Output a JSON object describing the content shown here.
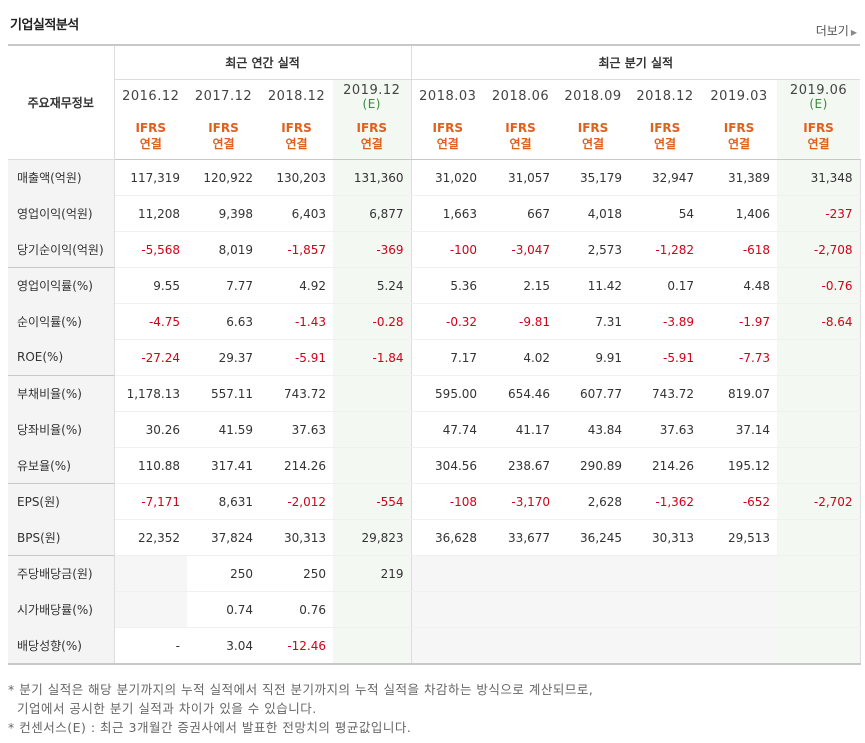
{
  "section_title": "기업실적분석",
  "more_label": "더보기",
  "more_arrow": "▶",
  "main_header": "주요재무정보",
  "groups": {
    "annual": "최근 연간 실적",
    "quarterly": "최근 분기 실적"
  },
  "periods": [
    {
      "label": "2016.12",
      "est": ""
    },
    {
      "label": "2017.12",
      "est": ""
    },
    {
      "label": "2018.12",
      "est": ""
    },
    {
      "label": "2019.12",
      "est": "(E)"
    },
    {
      "label": "2018.03",
      "est": ""
    },
    {
      "label": "2018.06",
      "est": ""
    },
    {
      "label": "2018.09",
      "est": ""
    },
    {
      "label": "2018.12",
      "est": ""
    },
    {
      "label": "2019.03",
      "est": ""
    },
    {
      "label": "2019.06",
      "est": "(E)"
    }
  ],
  "ifrs_line1": "IFRS",
  "ifrs_line2": "연결",
  "rows": [
    {
      "label": "매출액(억원)",
      "values": [
        "117,319",
        "120,922",
        "130,203",
        "131,360",
        "31,020",
        "31,057",
        "35,179",
        "32,947",
        "31,389",
        "31,348"
      ]
    },
    {
      "label": "영업이익(억원)",
      "values": [
        "11,208",
        "9,398",
        "6,403",
        "6,877",
        "1,663",
        "667",
        "4,018",
        "54",
        "1,406",
        "-237"
      ]
    },
    {
      "label": "당기순이익(억원)",
      "values": [
        "-5,568",
        "8,019",
        "-1,857",
        "-369",
        "-100",
        "-3,047",
        "2,573",
        "-1,282",
        "-618",
        "-2,708"
      ]
    },
    {
      "label": "영업이익률(%)",
      "values": [
        "9.55",
        "7.77",
        "4.92",
        "5.24",
        "5.36",
        "2.15",
        "11.42",
        "0.17",
        "4.48",
        "-0.76"
      ]
    },
    {
      "label": "순이익률(%)",
      "values": [
        "-4.75",
        "6.63",
        "-1.43",
        "-0.28",
        "-0.32",
        "-9.81",
        "7.31",
        "-3.89",
        "-1.97",
        "-8.64"
      ]
    },
    {
      "label": "ROE(%)",
      "values": [
        "-27.24",
        "29.37",
        "-5.91",
        "-1.84",
        "7.17",
        "4.02",
        "9.91",
        "-5.91",
        "-7.73",
        ""
      ]
    },
    {
      "label": "부채비율(%)",
      "values": [
        "1,178.13",
        "557.11",
        "743.72",
        "",
        "595.00",
        "654.46",
        "607.77",
        "743.72",
        "819.07",
        ""
      ]
    },
    {
      "label": "당좌비율(%)",
      "values": [
        "30.26",
        "41.59",
        "37.63",
        "",
        "47.74",
        "41.17",
        "43.84",
        "37.63",
        "37.14",
        ""
      ]
    },
    {
      "label": "유보율(%)",
      "values": [
        "110.88",
        "317.41",
        "214.26",
        "",
        "304.56",
        "238.67",
        "290.89",
        "214.26",
        "195.12",
        ""
      ]
    },
    {
      "label": "EPS(원)",
      "values": [
        "-7,171",
        "8,631",
        "-2,012",
        "-554",
        "-108",
        "-3,170",
        "2,628",
        "-1,362",
        "-652",
        "-2,702"
      ]
    },
    {
      "label": "BPS(원)",
      "values": [
        "22,352",
        "37,824",
        "30,313",
        "29,823",
        "36,628",
        "33,677",
        "36,245",
        "30,313",
        "29,513",
        ""
      ]
    },
    {
      "label": "주당배당금(원)",
      "values": [
        "",
        "250",
        "250",
        "219",
        "",
        "",
        "",
        "",
        "",
        ""
      ]
    },
    {
      "label": "시가배당률(%)",
      "values": [
        "",
        "0.74",
        "0.76",
        "",
        "",
        "",
        "",
        "",
        "",
        ""
      ]
    },
    {
      "label": "배당성향(%)",
      "values": [
        "-",
        "3.04",
        "-12.46",
        "",
        "",
        "",
        "",
        "",
        "",
        ""
      ]
    }
  ],
  "notes": [
    "* 분기 실적은 해당 분기까지의 누적 실적에서 직전 분기까지의 누적 실적을 차감하는 방식으로 계산되므로,",
    "  기업에서 공시한 분기 실적과 차이가 있을 수 있습니다.",
    "* 컨센서스(E) : 최근 3개월간 증권사에서 발표한 전망치의 평균값입니다."
  ],
  "colors": {
    "negative": "#d0021b",
    "ifrs": "#e06020",
    "estimate_bg": "#f3f8f3",
    "estimate_text": "#3a8a3a"
  }
}
